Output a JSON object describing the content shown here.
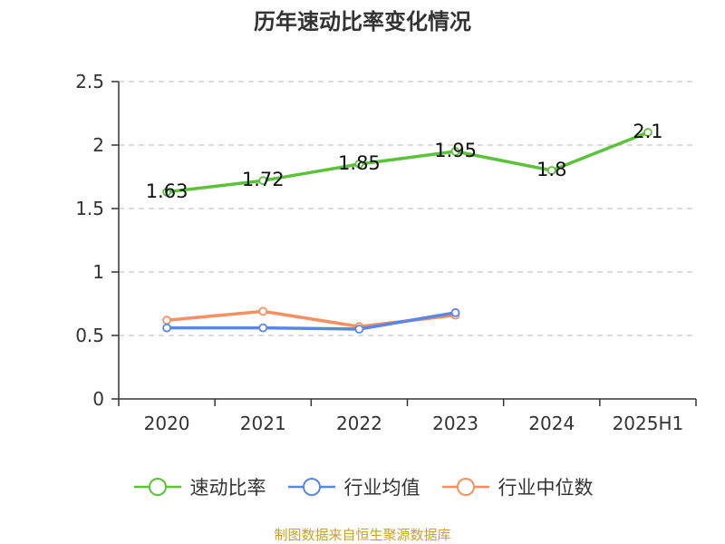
{
  "title": "历年速动比率变化情况",
  "source": "制图数据来自恒生聚源数据库",
  "colors": {
    "速动比率": "#5cc23a",
    "行业均值": "#5b86e5",
    "行业中位数": "#f59060"
  },
  "chart_data": {
    "type": "line",
    "title": "历年速动比率变化情况",
    "xlabel": "",
    "ylabel": "",
    "ylim": [
      0,
      2.5
    ],
    "yticks": [
      "0",
      "0.5",
      "1",
      "1.5",
      "2",
      "2.5"
    ],
    "categories": [
      "2020",
      "2021",
      "2022",
      "2023",
      "2024",
      "2025H1"
    ],
    "grid": true,
    "legend_position": "bottom",
    "series": [
      {
        "name": "速动比率",
        "values": [
          1.63,
          1.72,
          1.85,
          1.95,
          1.8,
          2.1
        ],
        "labels": [
          "1.63",
          "1.72",
          "1.85",
          "1.95",
          "1.8",
          "2.1"
        ]
      },
      {
        "name": "行业均值",
        "values": [
          0.56,
          0.56,
          0.55,
          0.68,
          null,
          null
        ]
      },
      {
        "name": "行业中位数",
        "values": [
          0.62,
          0.69,
          0.57,
          0.66,
          null,
          null
        ]
      }
    ]
  }
}
